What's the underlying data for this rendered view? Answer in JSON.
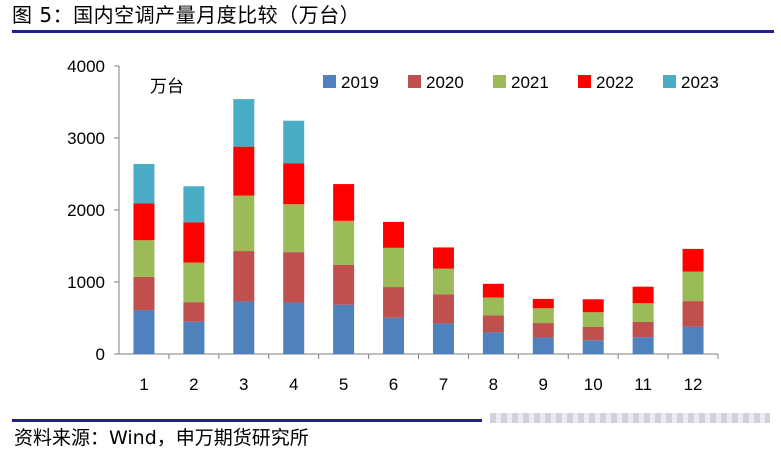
{
  "title": "图 5：国内空调产量月度比较（万台）",
  "source": "资料来源：Wind，申万期货研究所",
  "chart_data": {
    "type": "bar",
    "stacked": true,
    "unit_label": "万台",
    "categories": [
      "1",
      "2",
      "3",
      "4",
      "5",
      "6",
      "7",
      "8",
      "9",
      "10",
      "11",
      "12"
    ],
    "ylim": [
      0,
      4000
    ],
    "yticks": [
      0,
      1000,
      2000,
      3000,
      4000
    ],
    "series": [
      {
        "name": "2019",
        "color": "#4f81bd",
        "values": [
          610,
          450,
          730,
          715,
          685,
          505,
          425,
          300,
          230,
          190,
          235,
          380
        ]
      },
      {
        "name": "2020",
        "color": "#c0504d",
        "values": [
          460,
          270,
          700,
          700,
          555,
          425,
          405,
          235,
          200,
          185,
          210,
          355
        ]
      },
      {
        "name": "2021",
        "color": "#9bbb59",
        "values": [
          510,
          550,
          770,
          665,
          610,
          545,
          355,
          250,
          205,
          205,
          260,
          410
        ]
      },
      {
        "name": "2022",
        "color": "#ff0000",
        "values": [
          510,
          560,
          680,
          570,
          510,
          360,
          295,
          190,
          130,
          180,
          230,
          315
        ]
      },
      {
        "name": "2023",
        "color": "#4bacc6",
        "values": [
          550,
          500,
          660,
          590,
          0,
          0,
          0,
          0,
          0,
          0,
          0,
          0
        ]
      }
    ]
  }
}
